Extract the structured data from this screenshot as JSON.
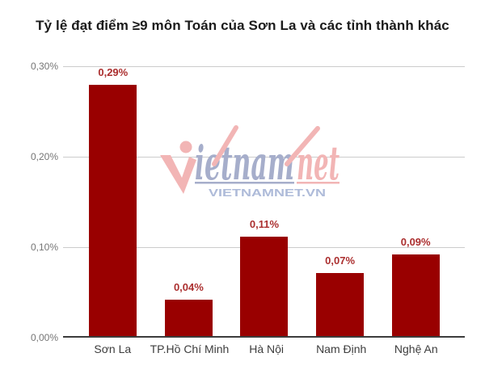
{
  "title": "Tỷ lệ đạt điểm ≥9 môn Toán của Sơn La và các tỉnh thành khác",
  "watermark": {
    "word_part1": "ietnam",
    "word_part2": "net",
    "caption": "VIETNAMNET.VN",
    "pink_color": "#f2b5b5",
    "blue_color": "#a6aecb",
    "caption_color": "#aebbd9"
  },
  "chart_data": {
    "type": "bar",
    "title": "Tỷ lệ đạt điểm ≥9 môn Toán của Sơn La và các tỉnh thành khác",
    "categories": [
      "Sơn La",
      "TP.Hồ Chí Minh",
      "Hà Nội",
      "Nam Định",
      "Nghệ An"
    ],
    "values": [
      0.29,
      0.04,
      0.11,
      0.07,
      0.09
    ],
    "value_labels": [
      "0,29%",
      "0,04%",
      "0,11%",
      "0,07%",
      "0,09%"
    ],
    "unit": "%",
    "ylim": [
      0,
      0.3
    ],
    "yticks": [
      "0,00%",
      "0,10%",
      "0,20%",
      "0,30%"
    ],
    "grid": true,
    "legend": "none",
    "bar_color": "#990000",
    "annotation_color": "#ab2f2f",
    "axis_text_color": "#757575"
  }
}
